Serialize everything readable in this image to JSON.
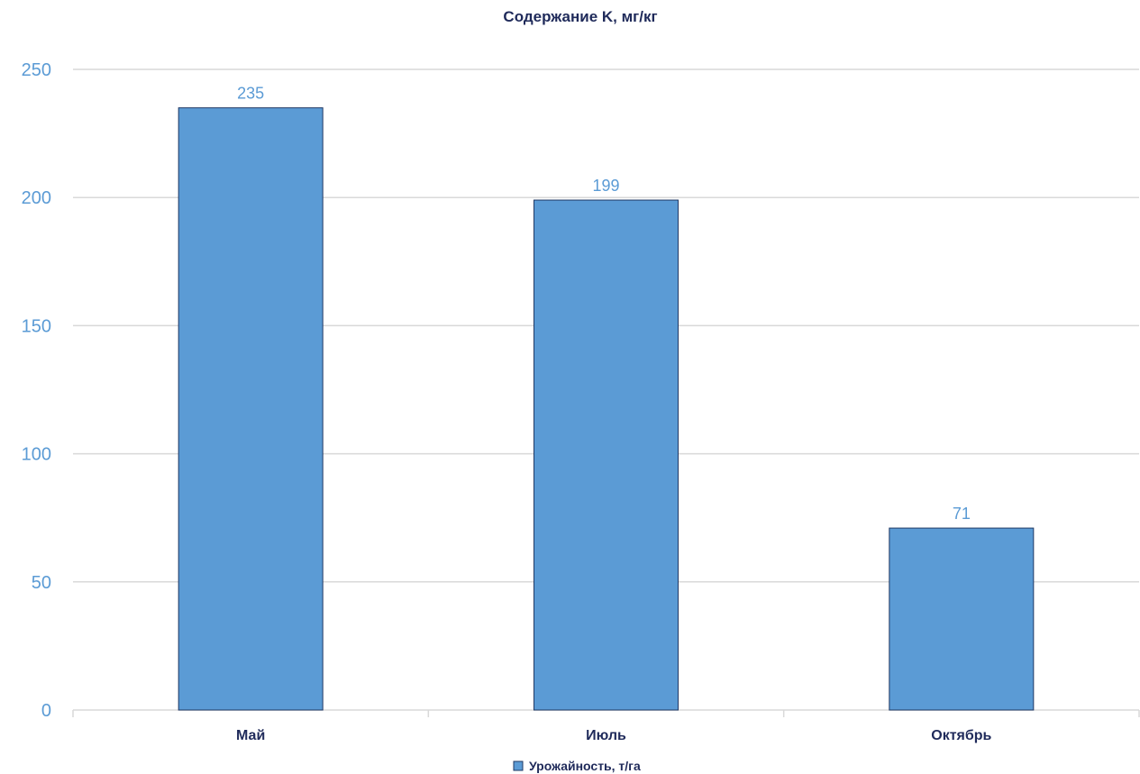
{
  "chart_data": {
    "type": "bar",
    "title": "Содержание K, мг/кг",
    "categories": [
      "Май",
      "Июль",
      "Октябрь"
    ],
    "series": [
      {
        "name": "Урожайность, т/га",
        "values": [
          235,
          199,
          71
        ],
        "color": "#5b9bd5",
        "border_color": "#1f3864"
      }
    ],
    "xlabel": "",
    "ylabel": "",
    "ylim": [
      0,
      250
    ],
    "yticks": [
      0,
      50,
      100,
      150,
      200,
      250
    ],
    "grid": true,
    "legend_position": "bottom",
    "data_labels": true
  }
}
